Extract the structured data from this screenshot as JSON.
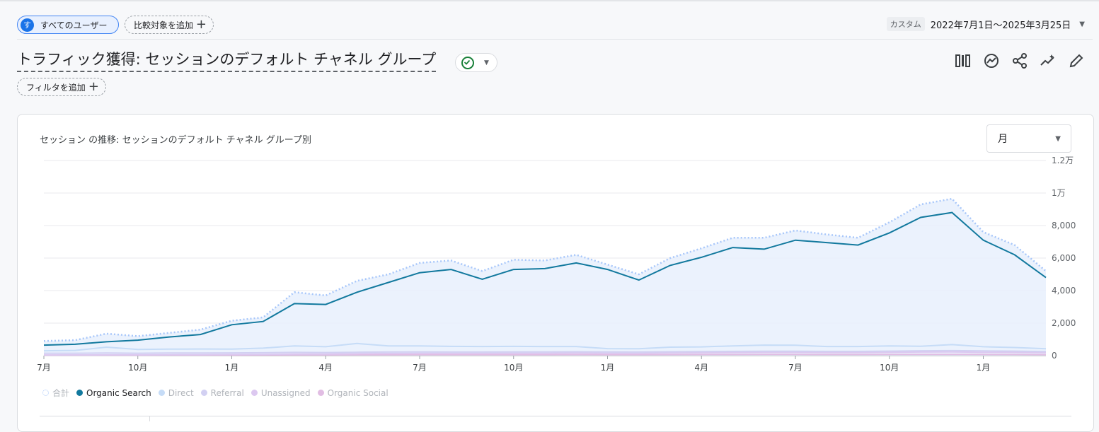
{
  "header": {
    "segment_avatar": "す",
    "segment_label": "すべてのユーザー",
    "compare_label": "比較対象を追加",
    "date_mode": "カスタム",
    "date_range": "2022年7月1日～2025年3月25日"
  },
  "report": {
    "title": "トラフィック獲得: セッションのデフォルト チャネル グループ",
    "filter_label": "フィルタを追加"
  },
  "toolbar": {
    "icons": [
      "compare-columns-icon",
      "insights-icon",
      "share-icon",
      "analytics-sparkle-icon",
      "edit-pencil-icon"
    ]
  },
  "card": {
    "title": "セッション の推移: セッションのデフォルト チャネル グループ別",
    "granularity": "月"
  },
  "colors": {
    "accent": "#1a73e8",
    "organic_search": "#12799e",
    "total": "#a8c7fa",
    "direct": "#c6dcf7",
    "referral": "#d2d0f2",
    "unassigned": "#dcc8f0",
    "organic_social": "#e1bde3"
  },
  "chart_data": {
    "type": "line",
    "x": [
      "2022-07",
      "2022-08",
      "2022-09",
      "2022-10",
      "2022-11",
      "2022-12",
      "2023-01",
      "2023-02",
      "2023-03",
      "2023-04",
      "2023-05",
      "2023-06",
      "2023-07",
      "2023-08",
      "2023-09",
      "2023-10",
      "2023-11",
      "2023-12",
      "2024-01",
      "2024-02",
      "2024-03",
      "2024-04",
      "2024-05",
      "2024-06",
      "2024-07",
      "2024-08",
      "2024-09",
      "2024-10",
      "2024-11",
      "2024-12",
      "2025-01",
      "2025-02",
      "2025-03"
    ],
    "x_tick_labels": [
      "7月",
      "10月",
      "1月",
      "4月",
      "7月",
      "10月",
      "1月",
      "4月",
      "7月",
      "10月",
      "1月"
    ],
    "y_tick_labels": [
      "0",
      "2,000",
      "4,000",
      "6,000",
      "8,000",
      "1万",
      "1.2万"
    ],
    "ylim": [
      0,
      12000
    ],
    "grid": true,
    "legend_position": "bottom-left",
    "series": [
      {
        "name": "合計",
        "style": "dotted",
        "values": [
          900,
          950,
          1350,
          1200,
          1400,
          1600,
          2150,
          2350,
          3900,
          3700,
          4600,
          5000,
          5700,
          5850,
          5200,
          5900,
          5850,
          6200,
          5600,
          5000,
          6000,
          6600,
          7250,
          7250,
          7700,
          7450,
          7250,
          8200,
          9300,
          9650,
          7600,
          6800,
          5200
        ]
      },
      {
        "name": "Organic Search",
        "values": [
          650,
          700,
          850,
          950,
          1150,
          1300,
          1900,
          2100,
          3200,
          3150,
          3900,
          4500,
          5100,
          5300,
          4700,
          5300,
          5350,
          5700,
          5300,
          4650,
          5550,
          6050,
          6650,
          6550,
          7100,
          6950,
          6800,
          7550,
          8500,
          8800,
          7100,
          6200,
          4800
        ]
      },
      {
        "name": "Direct",
        "values": [
          300,
          320,
          520,
          380,
          400,
          410,
          400,
          460,
          600,
          550,
          750,
          600,
          600,
          570,
          560,
          570,
          560,
          560,
          430,
          420,
          520,
          540,
          600,
          650,
          640,
          560,
          560,
          600,
          580,
          680,
          550,
          500,
          420
        ]
      },
      {
        "name": "Referral",
        "values": [
          150,
          150,
          160,
          150,
          160,
          160,
          170,
          180,
          200,
          190,
          210,
          220,
          230,
          220,
          220,
          230,
          230,
          240,
          230,
          220,
          240,
          250,
          260,
          270,
          270,
          260,
          260,
          280,
          300,
          310,
          290,
          280,
          250
        ]
      },
      {
        "name": "Unassigned",
        "values": [
          40,
          45,
          50,
          50,
          55,
          60,
          70,
          80,
          100,
          100,
          120,
          130,
          140,
          140,
          140,
          150,
          150,
          160,
          150,
          150,
          170,
          180,
          190,
          200,
          200,
          190,
          190,
          210,
          220,
          230,
          210,
          200,
          180
        ]
      },
      {
        "name": "Organic Social",
        "values": [
          30,
          30,
          35,
          35,
          40,
          40,
          40,
          45,
          50,
          50,
          55,
          55,
          60,
          60,
          60,
          60,
          60,
          65,
          60,
          60,
          65,
          70,
          70,
          75,
          75,
          70,
          70,
          75,
          80,
          80,
          75,
          70,
          60
        ]
      }
    ]
  }
}
